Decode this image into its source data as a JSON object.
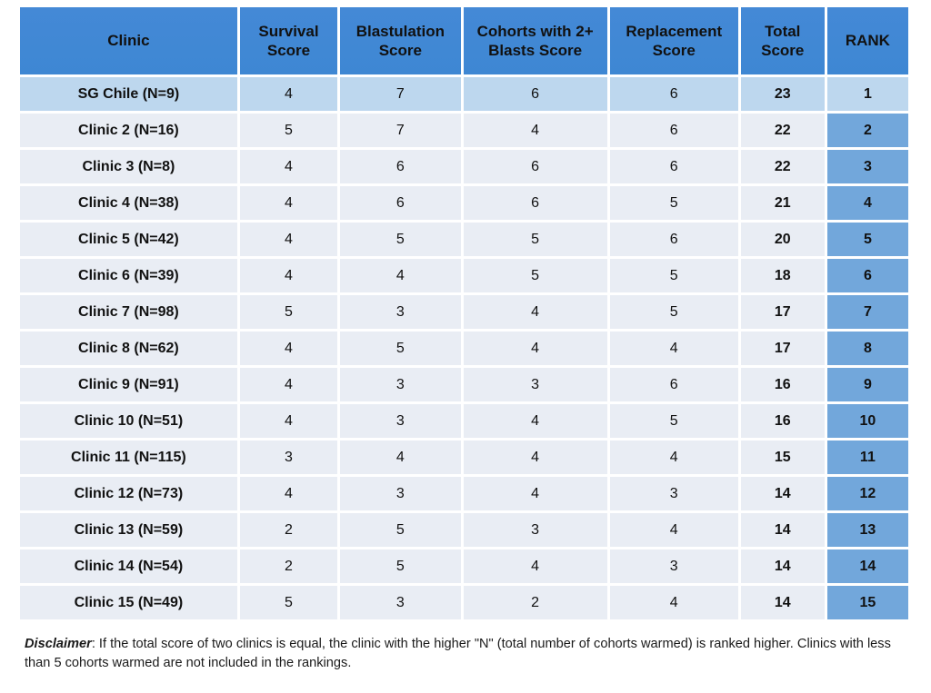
{
  "colors": {
    "header_bg": "#3E87D3",
    "header_bg_light": "#4489D6",
    "top_row_bg": "#BDD7EE",
    "row_bg": "#E9EDF4",
    "rank_cell_bg": "#72A7DB",
    "grid_gap": "#FFFFFF",
    "text": "#1A1A1A"
  },
  "chart_data": {
    "type": "table",
    "title": "",
    "columns": [
      "Clinic",
      "Survival Score",
      "Blastulation Score",
      "Cohorts with 2+ Blasts Score",
      "Replacement Score",
      "Total Score",
      "RANK"
    ],
    "column_widths_pct": [
      24.9,
      11.2,
      13.8,
      16.5,
      14.7,
      9.6,
      9.3
    ],
    "rows": [
      [
        "SG Chile (N=9)",
        4,
        7,
        6,
        6,
        23,
        1
      ],
      [
        "Clinic 2 (N=16)",
        5,
        7,
        4,
        6,
        22,
        2
      ],
      [
        "Clinic 3 (N=8)",
        4,
        6,
        6,
        6,
        22,
        3
      ],
      [
        "Clinic 4 (N=38)",
        4,
        6,
        6,
        5,
        21,
        4
      ],
      [
        "Clinic 5 (N=42)",
        4,
        5,
        5,
        6,
        20,
        5
      ],
      [
        "Clinic 6 (N=39)",
        4,
        4,
        5,
        5,
        18,
        6
      ],
      [
        "Clinic 7 (N=98)",
        5,
        3,
        4,
        5,
        17,
        7
      ],
      [
        "Clinic 8 (N=62)",
        4,
        5,
        4,
        4,
        17,
        8
      ],
      [
        "Clinic 9 (N=91)",
        4,
        3,
        3,
        6,
        16,
        9
      ],
      [
        "Clinic 10 (N=51)",
        4,
        3,
        4,
        5,
        16,
        10
      ],
      [
        "Clinic 11 (N=115)",
        3,
        4,
        4,
        4,
        15,
        11
      ],
      [
        "Clinic 12 (N=73)",
        4,
        3,
        4,
        3,
        14,
        12
      ],
      [
        "Clinic 13 (N=59)",
        2,
        5,
        3,
        4,
        14,
        13
      ],
      [
        "Clinic 14 (N=54)",
        2,
        5,
        4,
        3,
        14,
        14
      ],
      [
        "Clinic 15 (N=49)",
        5,
        3,
        2,
        4,
        14,
        15
      ]
    ],
    "highlighted_row": "SG Chile (N=9)"
  },
  "disclaimer": {
    "label": "Disclaimer",
    "text": ": If the total score of two clinics is equal, the clinic with the higher \"N\" (total number of cohorts warmed) is ranked higher. Clinics with less than 5 cohorts warmed are not included in the rankings."
  }
}
